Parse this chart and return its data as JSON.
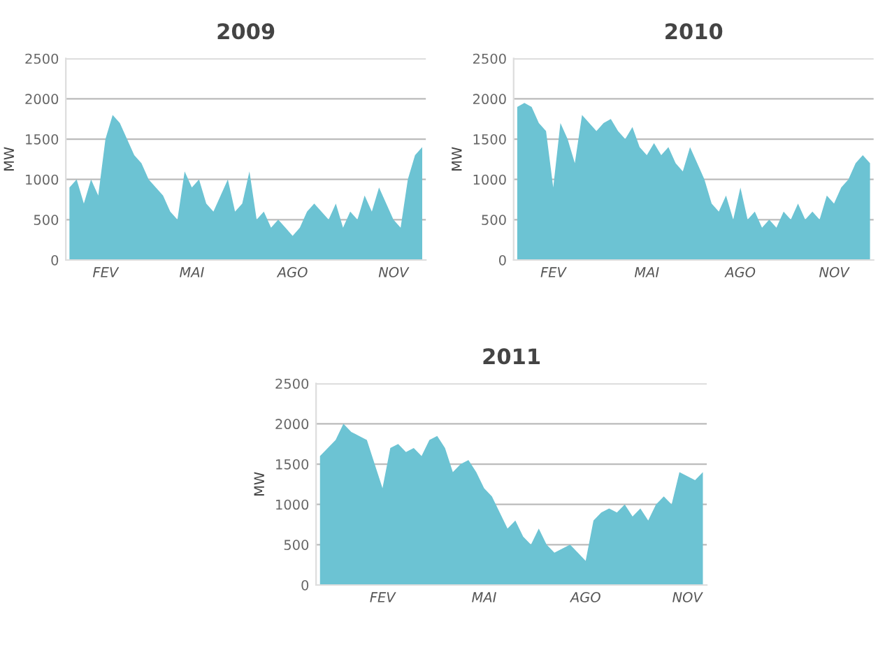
{
  "chart_data": [
    {
      "type": "area",
      "title": "2009",
      "ylabel": "MW",
      "color": "#6cc3d3",
      "ylim": [
        0,
        2500
      ],
      "yticks": [
        0,
        500,
        1000,
        1500,
        2000,
        2500
      ],
      "grid": "y",
      "categories": [
        null,
        null,
        null,
        null,
        null,
        "FEV",
        null,
        null,
        null,
        null,
        null,
        null,
        null,
        null,
        null,
        null,
        null,
        "MAI",
        null,
        null,
        null,
        null,
        null,
        null,
        null,
        null,
        null,
        null,
        null,
        null,
        null,
        "AGO",
        null,
        null,
        null,
        null,
        null,
        null,
        null,
        null,
        null,
        null,
        null,
        null,
        null,
        "NOV",
        null,
        null,
        null,
        null
      ],
      "values": [
        900,
        1000,
        700,
        1000,
        800,
        1500,
        1800,
        1700,
        1500,
        1300,
        1200,
        1000,
        900,
        800,
        600,
        500,
        1100,
        900,
        1000,
        700,
        600,
        800,
        1000,
        600,
        700,
        1100,
        500,
        600,
        400,
        500,
        400,
        300,
        400,
        600,
        700,
        600,
        500,
        700,
        400,
        600,
        500,
        800,
        600,
        900,
        700,
        500,
        400,
        1000,
        1300,
        1400
      ]
    },
    {
      "type": "area",
      "title": "2010",
      "ylabel": "MW",
      "color": "#6cc3d3",
      "ylim": [
        0,
        2500
      ],
      "yticks": [
        0,
        500,
        1000,
        1500,
        2000,
        2500
      ],
      "grid": "y",
      "categories": [
        null,
        null,
        null,
        null,
        null,
        "FEV",
        null,
        null,
        null,
        null,
        null,
        null,
        null,
        null,
        null,
        null,
        null,
        null,
        "MAI",
        null,
        null,
        null,
        null,
        null,
        null,
        null,
        null,
        null,
        null,
        null,
        null,
        "AGO",
        null,
        null,
        null,
        null,
        null,
        null,
        null,
        null,
        null,
        null,
        null,
        null,
        "NOV",
        null,
        null,
        null,
        null,
        null
      ],
      "values": [
        1900,
        1950,
        1900,
        1700,
        1600,
        900,
        1700,
        1500,
        1200,
        1800,
        1700,
        1600,
        1700,
        1750,
        1600,
        1500,
        1650,
        1400,
        1300,
        1450,
        1300,
        1400,
        1200,
        1100,
        1400,
        1200,
        1000,
        700,
        600,
        800,
        500,
        900,
        500,
        600,
        400,
        500,
        400,
        600,
        500,
        700,
        500,
        600,
        500,
        800,
        700,
        900,
        1000,
        1200,
        1300,
        1200
      ]
    },
    {
      "type": "area",
      "title": "2011",
      "ylabel": "MW",
      "color": "#6cc3d3",
      "ylim": [
        0,
        2500
      ],
      "yticks": [
        0,
        500,
        1000,
        1500,
        2000,
        2500
      ],
      "grid": "y",
      "categories": [
        null,
        null,
        null,
        null,
        null,
        null,
        null,
        null,
        "FEV",
        null,
        null,
        null,
        null,
        null,
        null,
        null,
        null,
        null,
        null,
        null,
        null,
        "MAI",
        null,
        null,
        null,
        null,
        null,
        null,
        null,
        null,
        null,
        null,
        null,
        null,
        "AGO",
        null,
        null,
        null,
        null,
        null,
        null,
        null,
        null,
        null,
        null,
        null,
        null,
        "NOV",
        null,
        null
      ],
      "values": [
        1600,
        1700,
        1800,
        2000,
        1900,
        1850,
        1800,
        1500,
        1200,
        1700,
        1750,
        1650,
        1700,
        1600,
        1800,
        1850,
        1700,
        1400,
        1500,
        1550,
        1400,
        1200,
        1100,
        900,
        700,
        800,
        600,
        500,
        700,
        500,
        400,
        450,
        500,
        400,
        300,
        800,
        900,
        950,
        900,
        1000,
        850,
        950,
        800,
        1000,
        1100,
        1000,
        1400,
        1350,
        1300,
        1400
      ]
    }
  ]
}
